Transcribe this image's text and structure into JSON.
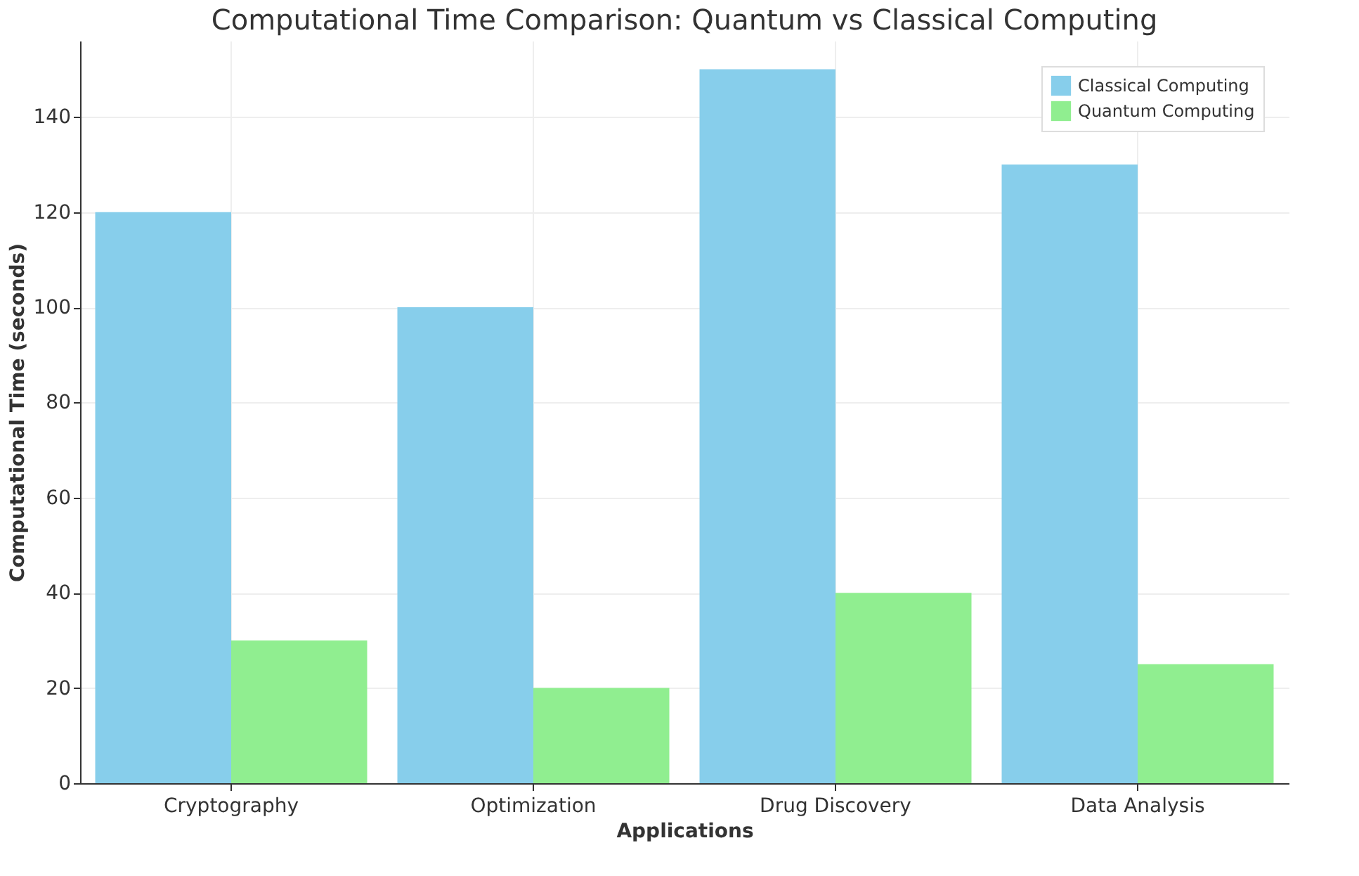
{
  "chart_data": {
    "type": "bar",
    "title": "Computational Time Comparison: Quantum vs Classical Computing",
    "xlabel": "Applications",
    "ylabel": "Computational Time (seconds)",
    "categories": [
      "Cryptography",
      "Optimization",
      "Drug Discovery",
      "Data Analysis"
    ],
    "series": [
      {
        "name": "Classical Computing",
        "color": "#87ceeb",
        "values": [
          120,
          100,
          150,
          130
        ]
      },
      {
        "name": "Quantum Computing",
        "color": "#90ee90",
        "values": [
          30,
          20,
          40,
          25
        ]
      }
    ],
    "ylim": [
      0,
      156
    ],
    "yticks": [
      0,
      20,
      40,
      60,
      80,
      100,
      120,
      140
    ],
    "grid": true,
    "legend": "top right"
  }
}
